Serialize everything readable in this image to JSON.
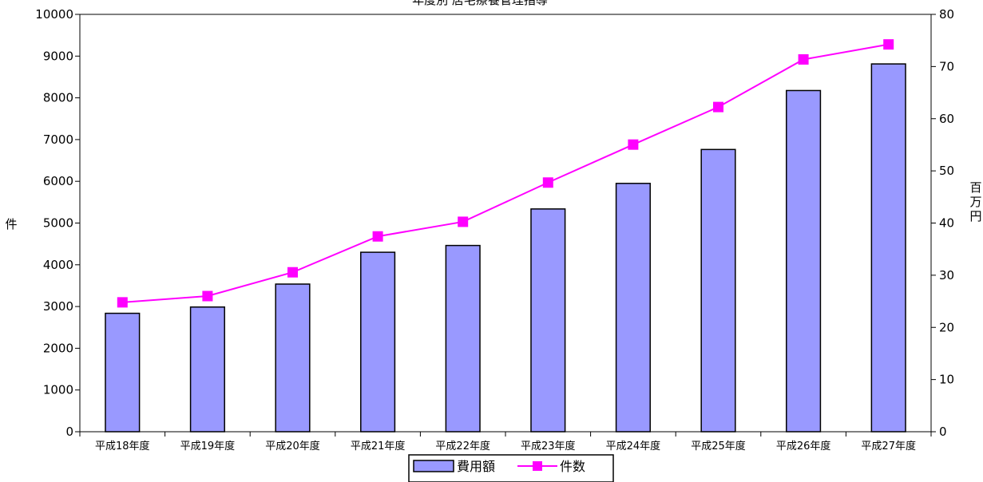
{
  "chart_data": {
    "type": "bar",
    "title": "年度別 居宅療養管理指導",
    "categories": [
      "平成18年度",
      "平成19年度",
      "平成20年度",
      "平成21年度",
      "平成22年度",
      "平成23年度",
      "平成24年度",
      "平成25年度",
      "平成26年度",
      "平成27年度"
    ],
    "series": [
      {
        "name": "費用額",
        "type": "bar",
        "axis": "right",
        "values": [
          22.7,
          23.9,
          28.3,
          34.4,
          35.7,
          42.7,
          47.6,
          54.1,
          65.4,
          70.5
        ],
        "color": "#9999ff"
      },
      {
        "name": "件数",
        "type": "line",
        "axis": "left",
        "values": [
          3100,
          3250,
          3820,
          4680,
          5030,
          5970,
          6880,
          7780,
          8920,
          9280
        ],
        "color": "#ff00ff"
      }
    ],
    "y_left": {
      "label": "件",
      "range": [
        0,
        10000
      ],
      "ticks": [
        0,
        1000,
        2000,
        3000,
        4000,
        5000,
        6000,
        7000,
        8000,
        9000,
        10000
      ]
    },
    "y_right": {
      "label": "百万円",
      "range": [
        0,
        80
      ],
      "ticks": [
        0,
        10,
        20,
        30,
        40,
        50,
        60,
        70,
        80
      ]
    },
    "legend_position": "bottom",
    "grid": false
  }
}
